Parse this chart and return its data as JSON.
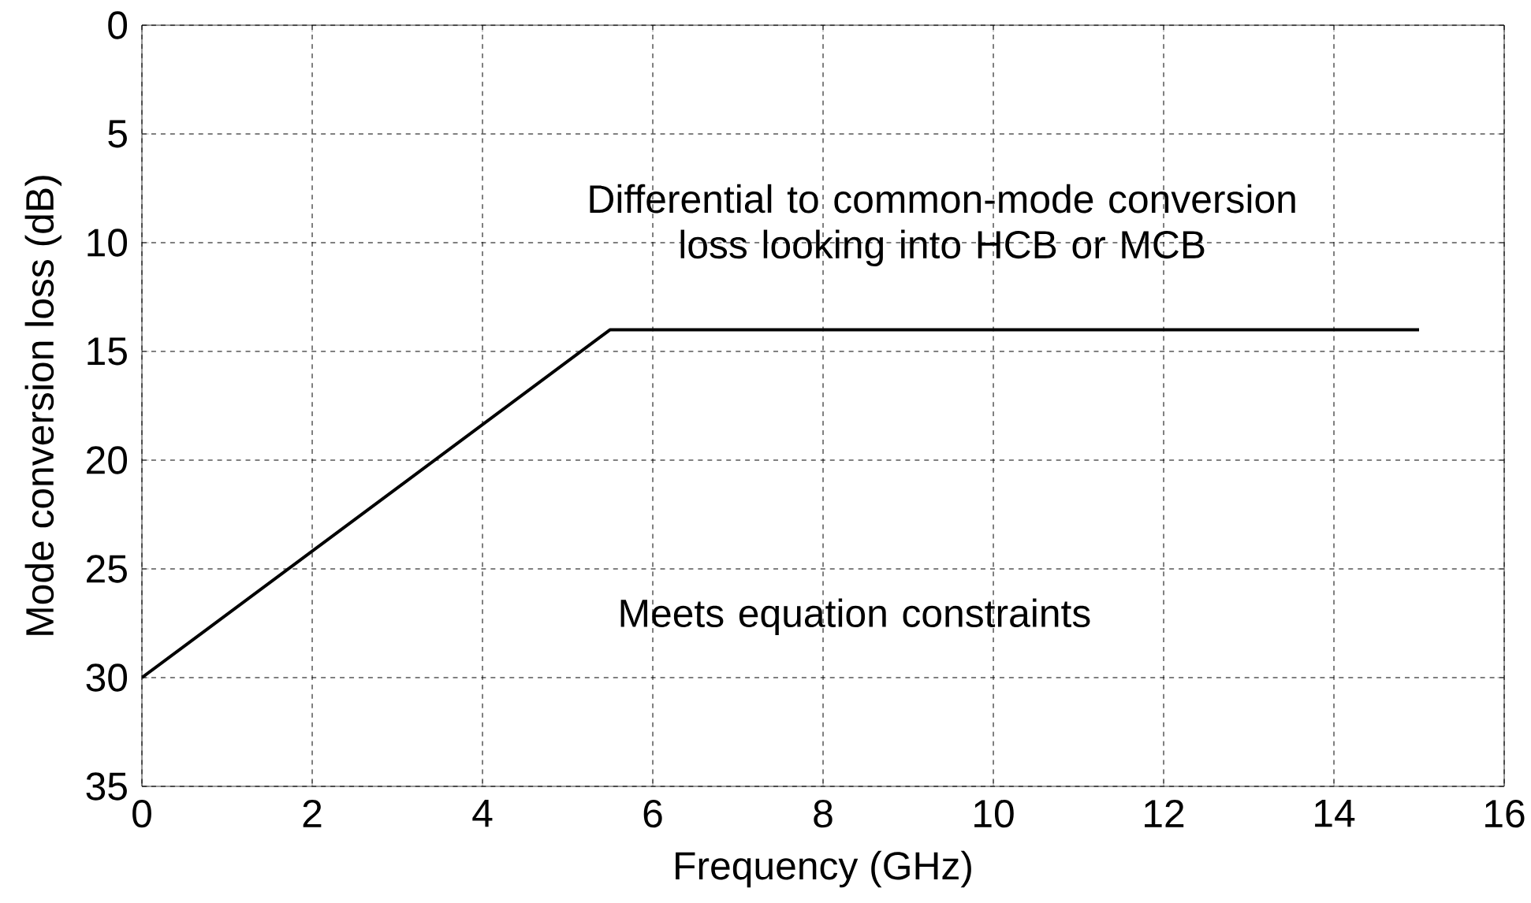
{
  "chart_data": {
    "type": "line",
    "xlabel": "Frequency (GHz)",
    "ylabel": "Mode conversion loss (dB)",
    "annotations": [
      "Differential to common-mode conversion loss looking into HCB or MCB",
      "Meets equation constraints"
    ],
    "x": [
      0,
      5.5,
      15
    ],
    "series": [
      {
        "color": "#000000",
        "values": [
          30,
          14,
          14
        ]
      }
    ],
    "xlim": [
      0,
      16
    ],
    "xticks": [
      0,
      2,
      4,
      6,
      8,
      10,
      12,
      14,
      16
    ],
    "ylim": [
      35,
      0
    ],
    "yticks": [
      0,
      5,
      10,
      15,
      20,
      25,
      30,
      35
    ],
    "grid": true,
    "marker": "none",
    "line_style": "solid"
  }
}
